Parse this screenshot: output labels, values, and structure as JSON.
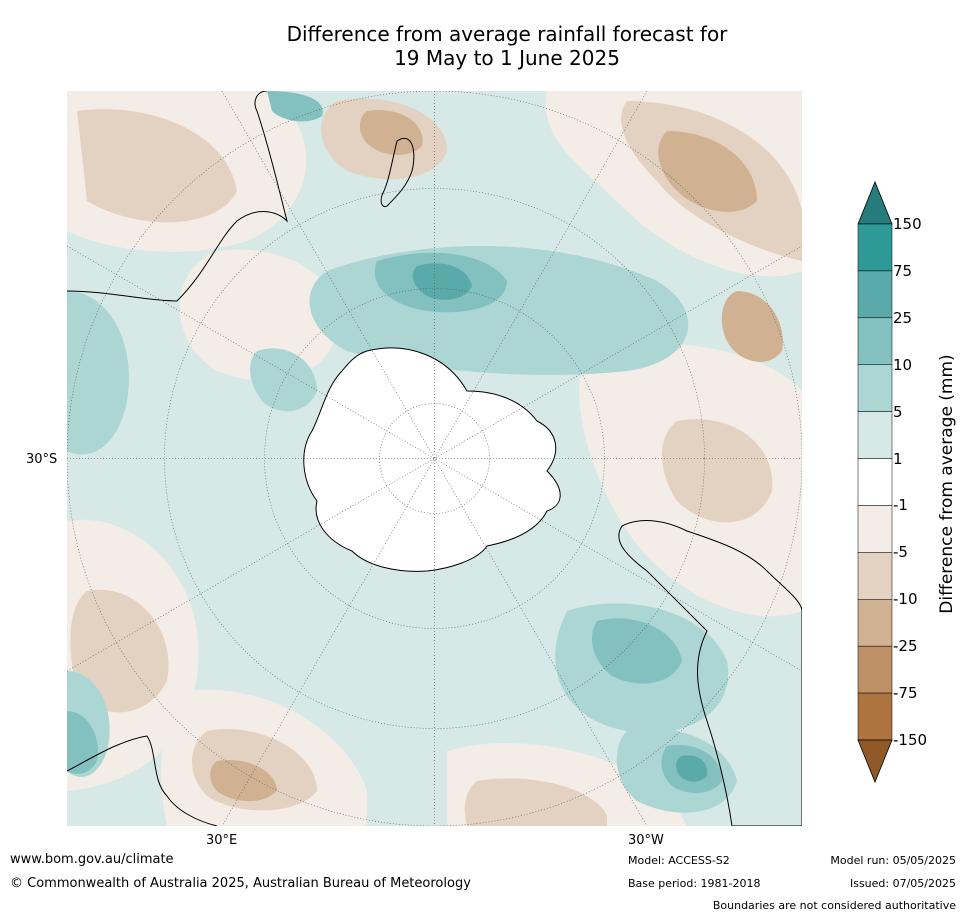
{
  "title": {
    "line1": "Difference from average rainfall forecast for",
    "line2": "19 May to 1 June 2025"
  },
  "map": {
    "projection": "south polar stereographic",
    "lat_label": "30°S",
    "lon_labels": [
      "30°E",
      "30°W"
    ]
  },
  "legend": {
    "axis_label": "Difference from average (mm)",
    "ticks": [
      "150",
      "75",
      "25",
      "10",
      "5",
      "1",
      "-1",
      "-5",
      "-10",
      "-25",
      "-75",
      "-150"
    ],
    "colors": {
      "over": "#257C7A",
      "bins": [
        "#2E9A98",
        "#59AAA9",
        "#82C1BF",
        "#ACD6D4",
        "#D7E9E7",
        "#FFFFFF",
        "#F4ECE6",
        "#E3D2C2",
        "#D0B191",
        "#BD9066",
        "#AE7440"
      ],
      "under": "#8F5A28"
    }
  },
  "footer": {
    "website": "www.bom.gov.au/climate",
    "copyright": "© Commonwealth of Australia 2025, Australian Bureau of Meteorology",
    "model": "Model: ACCESS-S2",
    "base_period": "Base period: 1981-2018",
    "model_run": "Model run: 05/05/2025",
    "issued": "Issued: 07/05/2025",
    "disclaimer": "Boundaries are not considered authoritative"
  }
}
